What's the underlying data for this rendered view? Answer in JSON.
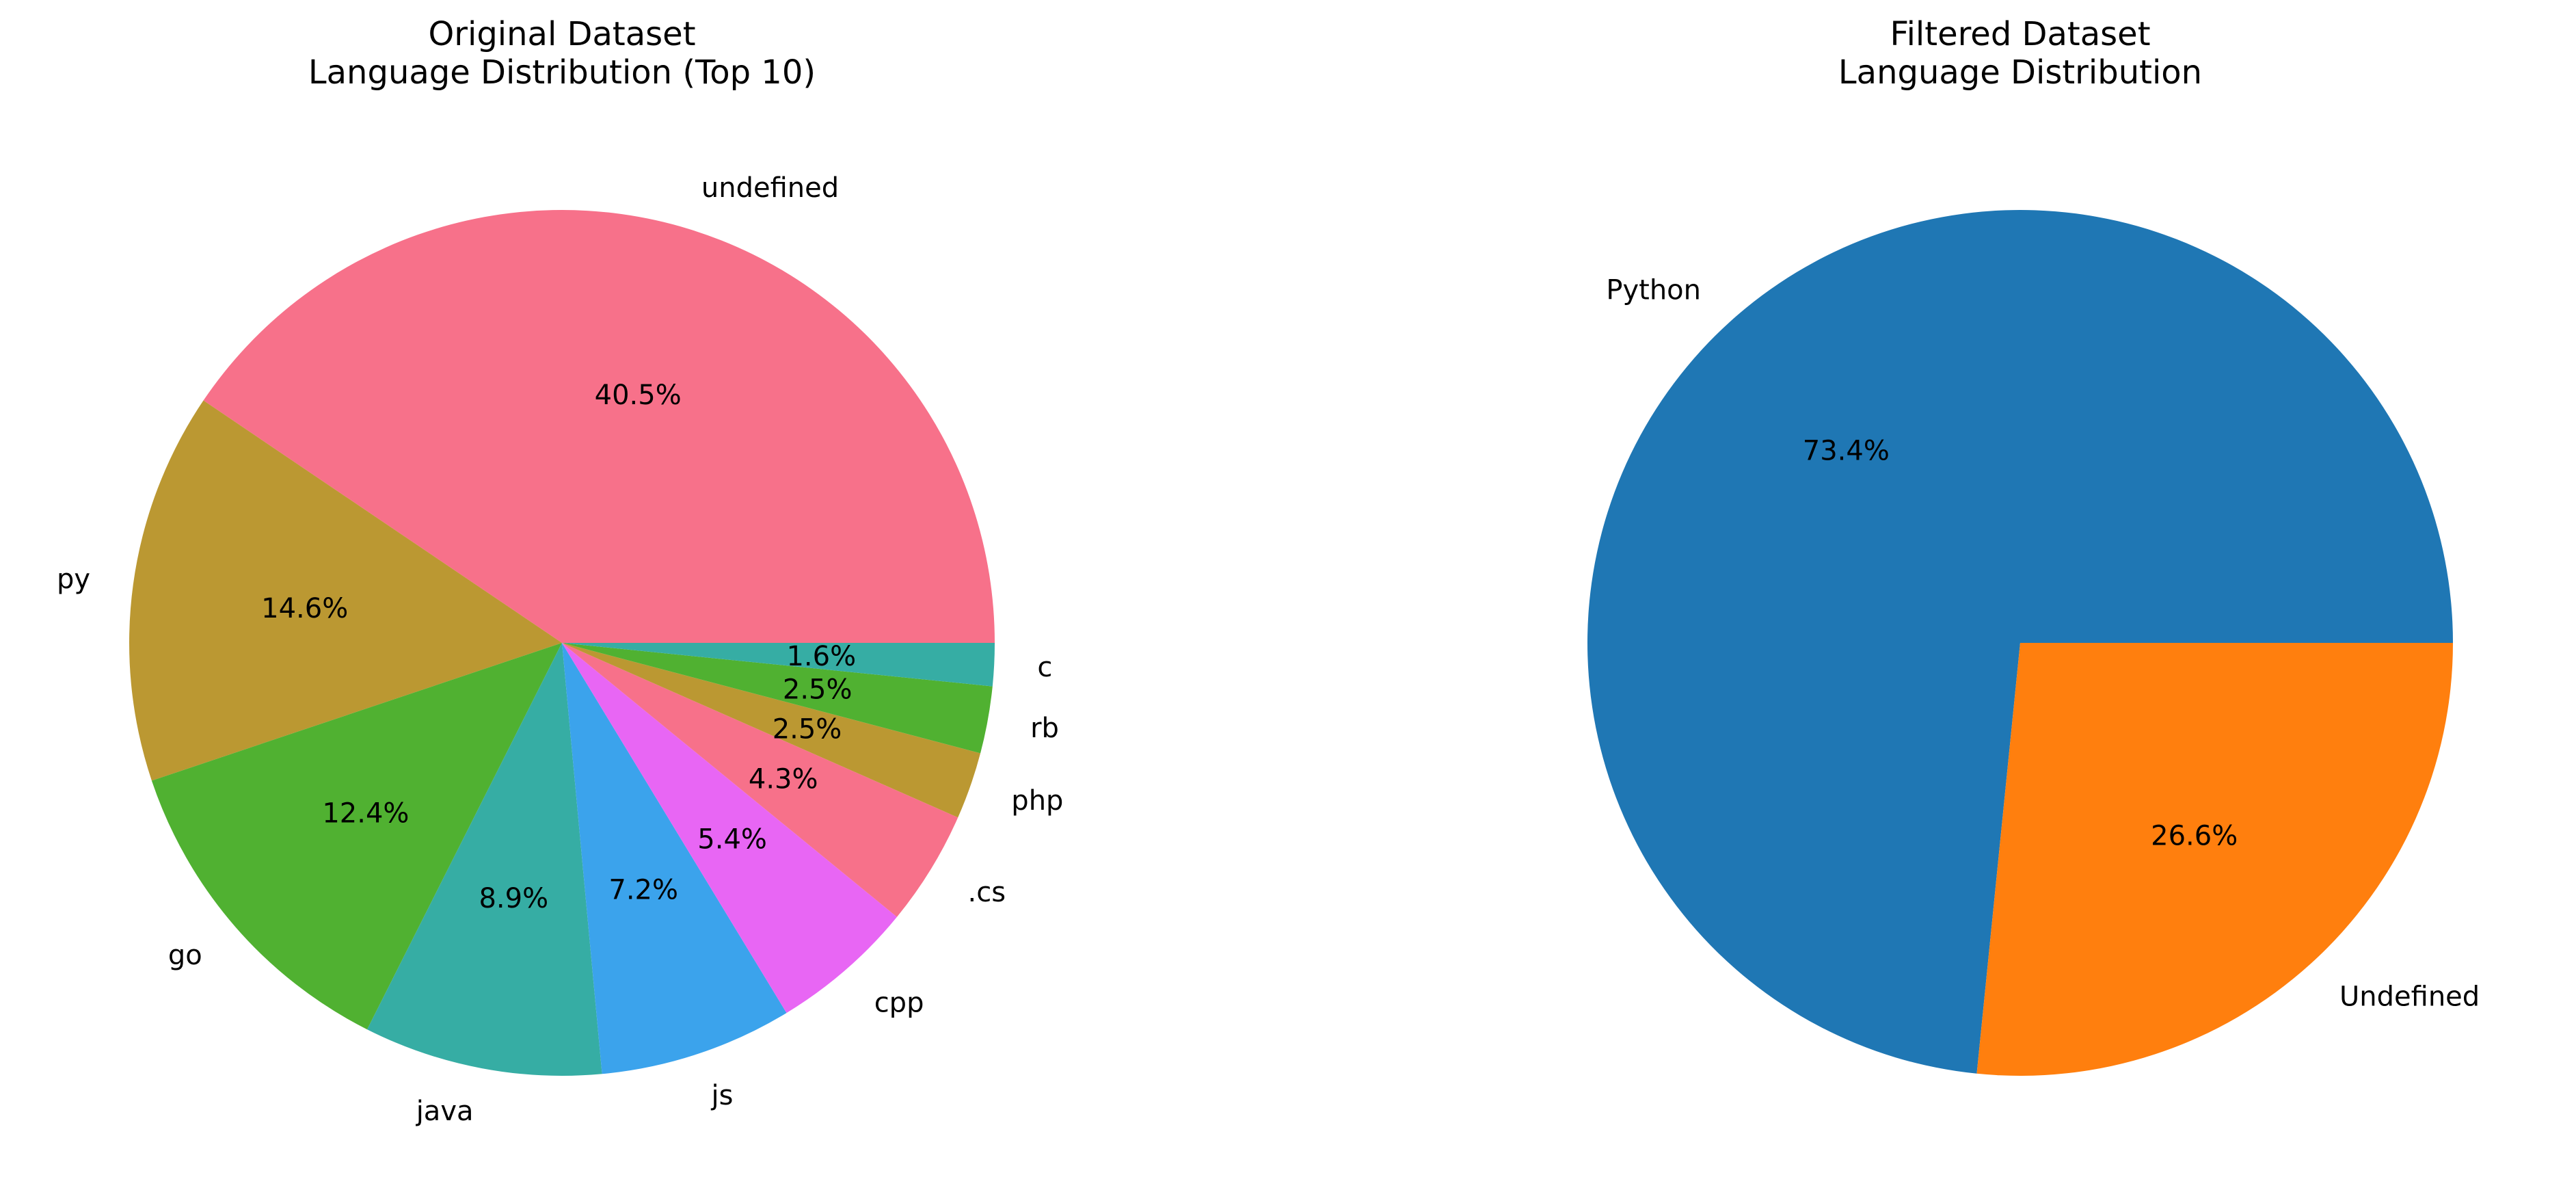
{
  "chart_data": [
    {
      "type": "pie",
      "title_lines": [
        "Original Dataset",
        "Language Distribution (Top 10)"
      ],
      "start_angle": 0,
      "direction": "counterclockwise",
      "slices": [
        {
          "label": "undefined",
          "value": 40.5,
          "pct_label": "40.5%",
          "color": "#f7718a"
        },
        {
          "label": "py",
          "value": 14.6,
          "pct_label": "14.6%",
          "color": "#bb9832"
        },
        {
          "label": "go",
          "value": 12.4,
          "pct_label": "12.4%",
          "color": "#50b131"
        },
        {
          "label": "java",
          "value": 8.9,
          "pct_label": "8.9%",
          "color": "#36ada4"
        },
        {
          "label": "js",
          "value": 7.2,
          "pct_label": "7.2%",
          "color": "#3ba3ec"
        },
        {
          "label": "cpp",
          "value": 5.4,
          "pct_label": "5.4%",
          "color": "#e866f4"
        },
        {
          "label": ".cs",
          "value": 4.3,
          "pct_label": "4.3%",
          "color": "#f7718a"
        },
        {
          "label": "php",
          "value": 2.5,
          "pct_label": "2.5%",
          "color": "#bb9832"
        },
        {
          "label": "rb",
          "value": 2.5,
          "pct_label": "2.5%",
          "color": "#50b131"
        },
        {
          "label": "c",
          "value": 1.6,
          "pct_label": "1.6%",
          "color": "#36ada4"
        }
      ]
    },
    {
      "type": "pie",
      "title_lines": [
        "Filtered Dataset",
        "Language Distribution"
      ],
      "start_angle": 0,
      "direction": "counterclockwise",
      "slices": [
        {
          "label": "Python",
          "value": 73.4,
          "pct_label": "73.4%",
          "color": "#1f77b4"
        },
        {
          "label": "Undefined",
          "value": 26.6,
          "pct_label": "26.6%",
          "color": "#ff7f0e"
        }
      ]
    }
  ]
}
